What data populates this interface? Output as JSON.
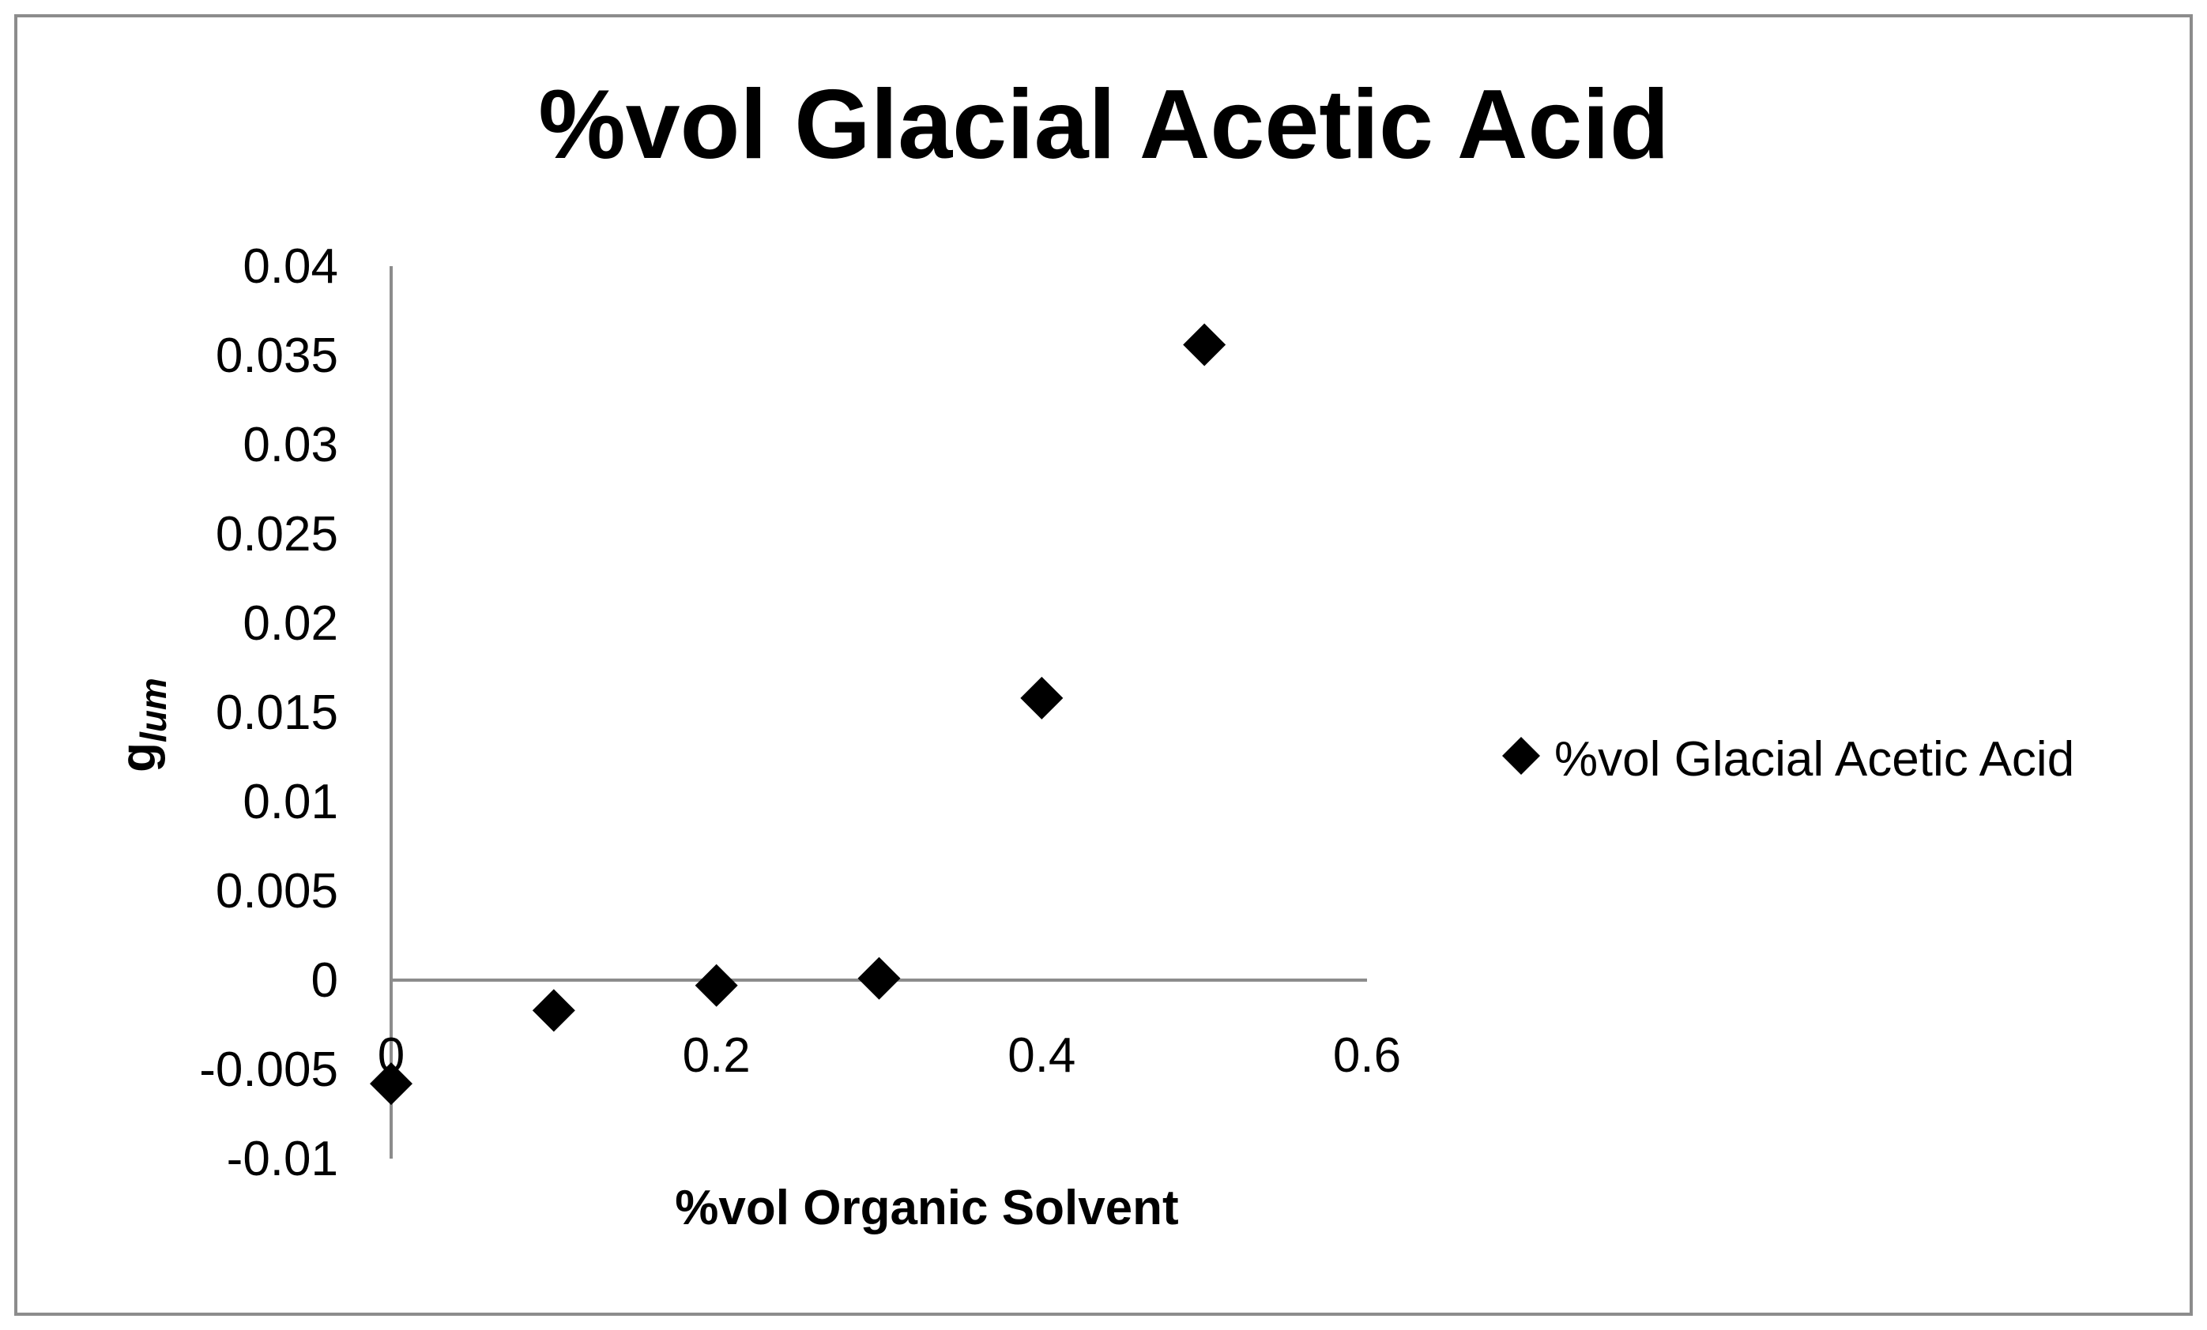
{
  "chart_data": {
    "type": "scatter",
    "title": "%vol Glacial Acetic Acid",
    "xlabel": "%vol Organic Solvent",
    "ylabel": {
      "main": "g",
      "subscript": "lum"
    },
    "xlim": [
      0,
      0.6
    ],
    "ylim": [
      -0.01,
      0.04
    ],
    "x_ticks": [
      "0",
      "0.2",
      "0.4",
      "0.6"
    ],
    "y_ticks": [
      "-0.01",
      "-0.005",
      "0",
      "0.005",
      "0.01",
      "0.015",
      "0.02",
      "0.025",
      "0.03",
      "0.035",
      "0.04"
    ],
    "grid": false,
    "legend_position": "right",
    "series": [
      {
        "name": "%vol Glacial Acetic Acid",
        "marker": "diamond",
        "color": "#000000",
        "points": [
          {
            "x": 0.0,
            "y": -0.0058
          },
          {
            "x": 0.1,
            "y": -0.0017
          },
          {
            "x": 0.2,
            "y": -0.0003
          },
          {
            "x": 0.3,
            "y": 0.0001
          },
          {
            "x": 0.4,
            "y": 0.0158
          },
          {
            "x": 0.5,
            "y": 0.0356
          }
        ]
      }
    ],
    "colors": {
      "axis": "#8c8c8c",
      "frame": "#8c8c8c",
      "marker": "#000000",
      "text": "#000000"
    }
  }
}
